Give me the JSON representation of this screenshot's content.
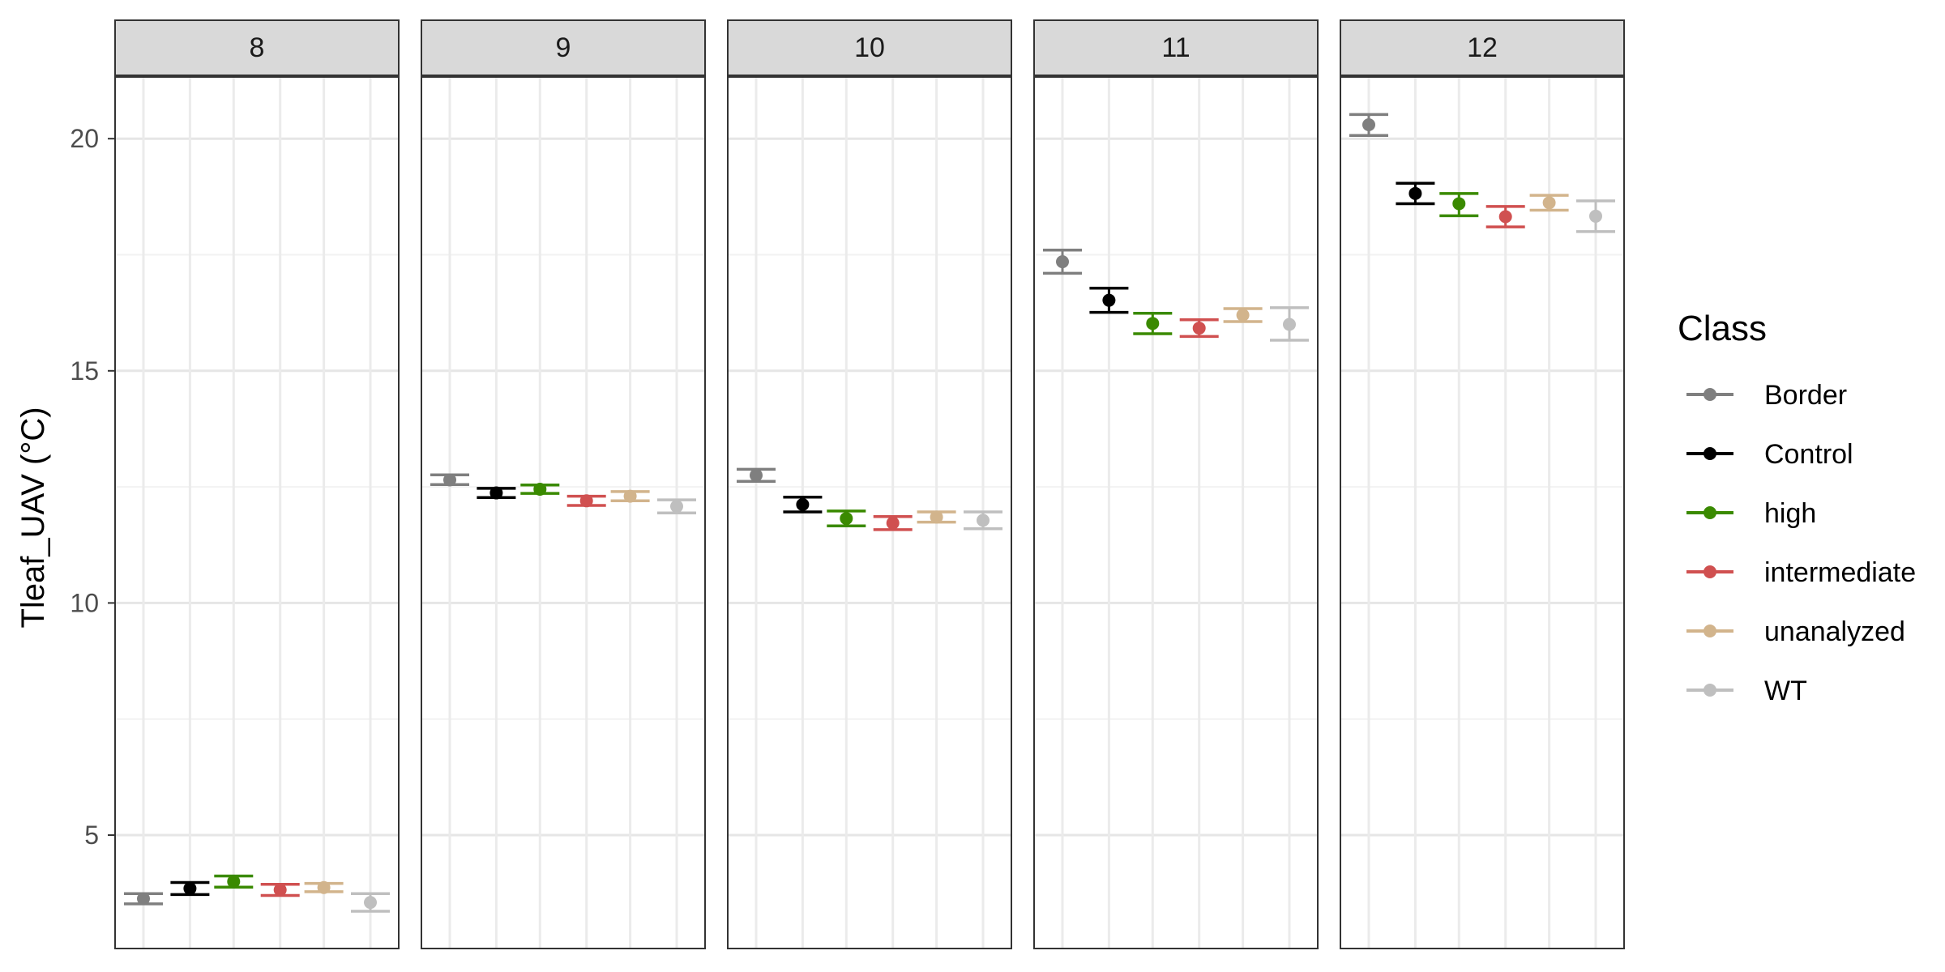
{
  "chart_data": {
    "type": "scatter",
    "subtype": "point-with-errorbar, faceted",
    "title": "",
    "xlabel": "",
    "ylabel": "Tleaf_UAV (°C)",
    "ylim": [
      2.7,
      22.4
    ],
    "yticks": [
      5,
      10,
      15,
      20
    ],
    "grid": true,
    "legend": {
      "title": "Class",
      "position": "right"
    },
    "facets": [
      "8",
      "9",
      "10",
      "11",
      "12"
    ],
    "categories": [
      "Border",
      "Control",
      "high",
      "intermediate",
      "unanalyzed",
      "WT"
    ],
    "colors": {
      "Border": "#7f7f7f",
      "Control": "#000000",
      "high": "#3a8a00",
      "intermediate": "#d05050",
      "unanalyzed": "#d2b48c",
      "WT": "#bfbfbf"
    },
    "series": [
      {
        "name": "Border",
        "values": [
          3.63,
          12.65,
          12.75,
          17.35,
          20.3
        ],
        "lower": [
          3.52,
          12.55,
          12.62,
          17.1,
          20.07
        ],
        "upper": [
          3.74,
          12.76,
          12.88,
          17.6,
          20.52
        ]
      },
      {
        "name": "Control",
        "values": [
          3.85,
          12.37,
          12.12,
          16.52,
          18.82
        ],
        "lower": [
          3.72,
          12.27,
          11.96,
          16.26,
          18.6
        ],
        "upper": [
          3.98,
          12.47,
          12.28,
          16.78,
          19.04
        ]
      },
      {
        "name": "high",
        "values": [
          4.0,
          12.45,
          11.82,
          16.02,
          18.6
        ],
        "lower": [
          3.88,
          12.36,
          11.66,
          15.8,
          18.34
        ],
        "upper": [
          4.12,
          12.54,
          11.98,
          16.24,
          18.82
        ]
      },
      {
        "name": "intermediate",
        "values": [
          3.82,
          12.2,
          11.72,
          15.92,
          18.32
        ],
        "lower": [
          3.7,
          12.1,
          11.58,
          15.74,
          18.1
        ],
        "upper": [
          3.94,
          12.3,
          11.86,
          16.1,
          18.54
        ]
      },
      {
        "name": "unanalyzed",
        "values": [
          3.87,
          12.3,
          11.85,
          16.2,
          18.62
        ],
        "lower": [
          3.78,
          12.2,
          11.74,
          16.06,
          18.46
        ],
        "upper": [
          3.96,
          12.4,
          11.96,
          16.34,
          18.78
        ]
      },
      {
        "name": "WT",
        "values": [
          3.55,
          12.08,
          11.78,
          16.0,
          18.33
        ],
        "lower": [
          3.36,
          11.94,
          11.6,
          15.66,
          18.0
        ],
        "upper": [
          3.74,
          12.22,
          11.96,
          16.36,
          18.66
        ]
      }
    ]
  }
}
